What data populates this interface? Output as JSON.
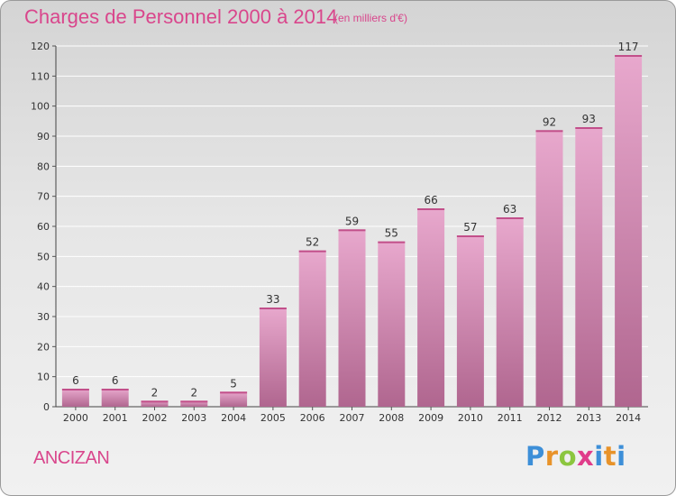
{
  "header": {
    "title": "Charges de Personnel 2000 à 2014",
    "unit": "(en milliers d'€)"
  },
  "footer": {
    "commune": "ANCIZAN",
    "brand": [
      "P",
      "r",
      "o",
      "x",
      "i",
      "t",
      "i"
    ]
  },
  "colors": {
    "accent": "#d9468c",
    "bar_light": "#e8a8cd",
    "bar_dark": "#b0668f"
  },
  "chart_data": {
    "type": "bar",
    "title": "Charges de Personnel 2000 à 2014",
    "subtitle": "(en milliers d'€)",
    "categories": [
      "2000",
      "2001",
      "2002",
      "2003",
      "2004",
      "2005",
      "2006",
      "2007",
      "2008",
      "2009",
      "2010",
      "2011",
      "2012",
      "2013",
      "2014"
    ],
    "values": [
      6,
      6,
      2,
      2,
      5,
      33,
      52,
      59,
      55,
      66,
      57,
      63,
      92,
      93,
      117
    ],
    "ylim": [
      0,
      120
    ],
    "yticks": [
      0,
      10,
      20,
      30,
      40,
      50,
      60,
      70,
      80,
      90,
      100,
      110,
      120
    ],
    "grid": true,
    "data_labels": true
  }
}
